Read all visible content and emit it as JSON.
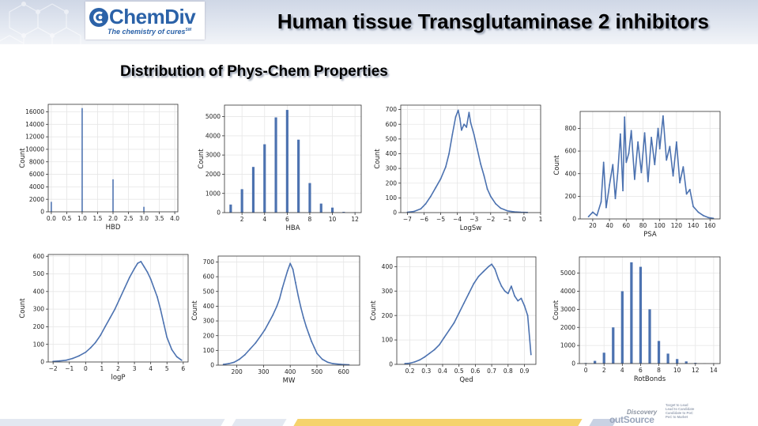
{
  "header": {
    "logo_name": "ChemDiv",
    "logo_tagline": "The chemistry of cures",
    "logo_sm": "SM",
    "title": "Human tissue Transglutaminase 2 inhibitors",
    "accent": "#2b62a8"
  },
  "subtitle": "Distribution of Phys-Chem Properties",
  "footer": {
    "discovery": "Discovery",
    "outsource": "outSource",
    "tagline": [
      "Target to Lead",
      "Lead to Candidate",
      "Candidate to PoC",
      "PoC to Market"
    ],
    "band_colors": [
      "#e3e8f1",
      "#f5d36c",
      "#c9d2e3"
    ]
  },
  "series_color": "#4c72b0",
  "chart_data": [
    {
      "type": "bar",
      "xlabel": "HBD",
      "ylabel": "Count",
      "xlim": [
        -0.1,
        4.1
      ],
      "ylim": [
        0,
        17200
      ],
      "xticks": [
        0.0,
        0.5,
        1.0,
        1.5,
        2.0,
        2.5,
        3.0,
        3.5,
        4.0
      ],
      "xtick_labels": [
        "0.0",
        "0.5",
        "1.0",
        "1.5",
        "2.0",
        "2.5",
        "3.0",
        "3.5",
        "4.0"
      ],
      "yticks": [
        0,
        2000,
        4000,
        6000,
        8000,
        10000,
        12000,
        14000,
        16000
      ],
      "ytick_labels": [
        "0",
        "2000",
        "4000",
        "6000",
        "8000",
        "10000",
        "12000",
        "14000",
        "16000"
      ],
      "grid": true,
      "bar_width": 0.04,
      "x": [
        0,
        1,
        2,
        3,
        4
      ],
      "values": [
        1600,
        16600,
        5200,
        800,
        60
      ]
    },
    {
      "type": "bar",
      "xlabel": "HBA",
      "ylabel": "Count",
      "xlim": [
        0.45,
        12.55
      ],
      "ylim": [
        0,
        5600
      ],
      "xticks": [
        2,
        4,
        6,
        8,
        10,
        12
      ],
      "xtick_labels": [
        "2",
        "4",
        "6",
        "8",
        "10",
        "12"
      ],
      "yticks": [
        0,
        1000,
        2000,
        3000,
        4000,
        5000
      ],
      "ytick_labels": [
        "0",
        "1000",
        "2000",
        "3000",
        "4000",
        "5000"
      ],
      "grid": true,
      "bar_width": 0.22,
      "x": [
        1,
        2,
        3,
        4,
        5,
        6,
        7,
        8,
        9,
        10,
        11,
        12
      ],
      "values": [
        420,
        1220,
        2380,
        3560,
        4960,
        5350,
        3800,
        1540,
        470,
        260,
        40,
        20
      ]
    },
    {
      "type": "histogram",
      "xlabel": "LogSw",
      "ylabel": "Count",
      "xlim": [
        -7.4,
        1.0
      ],
      "ylim": [
        0,
        730
      ],
      "xticks": [
        -7,
        -6,
        -5,
        -4,
        -3,
        -2,
        -1,
        0,
        1
      ],
      "xtick_labels": [
        "−7",
        "−6",
        "−5",
        "−4",
        "−3",
        "−2",
        "−1",
        "0",
        "1"
      ],
      "yticks": [
        0,
        100,
        200,
        300,
        400,
        500,
        600,
        700
      ],
      "ytick_labels": [
        "0",
        "100",
        "200",
        "300",
        "400",
        "500",
        "600",
        "700"
      ],
      "grid": true,
      "x": [
        -7.0,
        -6.6,
        -6.2,
        -5.9,
        -5.6,
        -5.3,
        -5.0,
        -4.7,
        -4.5,
        -4.3,
        -4.1,
        -3.95,
        -3.85,
        -3.75,
        -3.6,
        -3.45,
        -3.3,
        -3.2,
        -3.0,
        -2.8,
        -2.6,
        -2.4,
        -2.2,
        -2.0,
        -1.7,
        -1.4,
        -1.0,
        -0.6,
        -0.2,
        0.2
      ],
      "values": [
        2,
        8,
        25,
        60,
        110,
        170,
        230,
        310,
        400,
        530,
        650,
        695,
        640,
        560,
        600,
        580,
        680,
        610,
        530,
        430,
        330,
        250,
        160,
        110,
        60,
        30,
        12,
        5,
        2,
        1
      ]
    },
    {
      "type": "histogram",
      "xlabel": "PSA",
      "ylabel": "Count",
      "xlim": [
        5,
        172
      ],
      "ylim": [
        0,
        950
      ],
      "xticks": [
        20,
        40,
        60,
        80,
        100,
        120,
        140,
        160
      ],
      "xtick_labels": [
        "20",
        "40",
        "60",
        "80",
        "100",
        "120",
        "140",
        "160"
      ],
      "yticks": [
        0,
        200,
        400,
        600,
        800
      ],
      "ytick_labels": [
        "0",
        "200",
        "400",
        "600",
        "800"
      ],
      "grid": true,
      "x": [
        15,
        20,
        25,
        30,
        33,
        36,
        40,
        44,
        47,
        50,
        53,
        56,
        58,
        60,
        63,
        66,
        70,
        74,
        78,
        82,
        86,
        90,
        94,
        98,
        100,
        104,
        108,
        112,
        116,
        120,
        124,
        128,
        132,
        136,
        140,
        146,
        152,
        158,
        164
      ],
      "values": [
        20,
        60,
        30,
        150,
        500,
        100,
        300,
        480,
        180,
        420,
        750,
        250,
        900,
        500,
        580,
        780,
        350,
        680,
        410,
        760,
        330,
        720,
        480,
        800,
        620,
        910,
        520,
        640,
        380,
        680,
        320,
        460,
        220,
        260,
        110,
        60,
        30,
        12,
        5
      ]
    },
    {
      "type": "histogram",
      "xlabel": "logP",
      "ylabel": "Count",
      "xlim": [
        -2.3,
        6.3
      ],
      "ylim": [
        0,
        610
      ],
      "xticks": [
        -2,
        -1,
        0,
        1,
        2,
        3,
        4,
        5,
        6
      ],
      "xtick_labels": [
        "−2",
        "−1",
        "0",
        "1",
        "2",
        "3",
        "4",
        "5",
        "6"
      ],
      "yticks": [
        0,
        100,
        200,
        300,
        400,
        500,
        600
      ],
      "ytick_labels": [
        "0",
        "100",
        "200",
        "300",
        "400",
        "500",
        "600"
      ],
      "grid": true,
      "x": [
        -2.0,
        -1.6,
        -1.2,
        -0.8,
        -0.4,
        0.0,
        0.3,
        0.6,
        0.9,
        1.2,
        1.5,
        1.8,
        2.1,
        2.4,
        2.7,
        3.0,
        3.2,
        3.4,
        3.6,
        3.8,
        4.0,
        4.2,
        4.4,
        4.6,
        4.8,
        5.0,
        5.3,
        5.6,
        5.9
      ],
      "values": [
        3,
        6,
        10,
        20,
        35,
        55,
        80,
        110,
        150,
        200,
        250,
        300,
        360,
        420,
        480,
        530,
        560,
        570,
        540,
        510,
        470,
        420,
        370,
        300,
        220,
        140,
        70,
        30,
        10
      ]
    },
    {
      "type": "histogram",
      "xlabel": "MW",
      "ylabel": "Count",
      "xlim": [
        130,
        660
      ],
      "ylim": [
        0,
        740
      ],
      "xticks": [
        200,
        300,
        400,
        500,
        600
      ],
      "xtick_labels": [
        "200",
        "300",
        "400",
        "500",
        "600"
      ],
      "yticks": [
        0,
        100,
        200,
        300,
        400,
        500,
        600,
        700
      ],
      "ytick_labels": [
        "0",
        "100",
        "200",
        "300",
        "400",
        "500",
        "600",
        "700"
      ],
      "grid": true,
      "x": [
        150,
        170,
        190,
        210,
        230,
        250,
        270,
        290,
        305,
        320,
        335,
        350,
        360,
        370,
        380,
        390,
        400,
        410,
        420,
        430,
        440,
        450,
        460,
        470,
        480,
        490,
        500,
        520,
        540,
        560,
        590,
        620
      ],
      "values": [
        5,
        10,
        20,
        40,
        70,
        110,
        150,
        200,
        240,
        290,
        340,
        400,
        450,
        520,
        580,
        640,
        690,
        650,
        560,
        470,
        390,
        320,
        260,
        210,
        160,
        120,
        80,
        40,
        20,
        10,
        5,
        2
      ]
    },
    {
      "type": "histogram",
      "xlabel": "Qed",
      "ylabel": "Count",
      "xlim": [
        0.12,
        0.97
      ],
      "ylim": [
        0,
        440
      ],
      "xticks": [
        0.2,
        0.3,
        0.4,
        0.5,
        0.6,
        0.7,
        0.8,
        0.9
      ],
      "xtick_labels": [
        "0.2",
        "0.3",
        "0.4",
        "0.5",
        "0.6",
        "0.7",
        "0.8",
        "0.9"
      ],
      "yticks": [
        0,
        100,
        200,
        300,
        400
      ],
      "ytick_labels": [
        "0",
        "100",
        "200",
        "300",
        "400"
      ],
      "grid": true,
      "x": [
        0.17,
        0.2,
        0.23,
        0.26,
        0.29,
        0.32,
        0.35,
        0.38,
        0.41,
        0.44,
        0.47,
        0.5,
        0.53,
        0.56,
        0.59,
        0.62,
        0.65,
        0.68,
        0.7,
        0.72,
        0.74,
        0.76,
        0.78,
        0.8,
        0.82,
        0.84,
        0.86,
        0.88,
        0.9,
        0.92,
        0.94
      ],
      "values": [
        3,
        5,
        10,
        18,
        30,
        45,
        60,
        80,
        110,
        140,
        170,
        210,
        250,
        290,
        330,
        360,
        380,
        400,
        410,
        390,
        350,
        320,
        300,
        290,
        320,
        280,
        260,
        270,
        240,
        200,
        40
      ]
    },
    {
      "type": "bar",
      "xlabel": "RotBonds",
      "ylabel": "Count",
      "xlim": [
        -0.7,
        14.7
      ],
      "ylim": [
        0,
        5900
      ],
      "xticks": [
        0,
        2,
        4,
        6,
        8,
        10,
        12,
        14
      ],
      "xtick_labels": [
        "0",
        "2",
        "4",
        "6",
        "8",
        "10",
        "12",
        "14"
      ],
      "yticks": [
        0,
        1000,
        2000,
        3000,
        4000,
        5000
      ],
      "ytick_labels": [
        "0",
        "1000",
        "2000",
        "3000",
        "4000",
        "5000"
      ],
      "grid": true,
      "bar_width": 0.28,
      "x": [
        0,
        1,
        2,
        3,
        4,
        5,
        6,
        7,
        8,
        9,
        10,
        11,
        12,
        13,
        14
      ],
      "values": [
        30,
        150,
        600,
        2000,
        4000,
        5600,
        5350,
        3000,
        1250,
        550,
        250,
        120,
        40,
        10,
        5
      ]
    }
  ]
}
